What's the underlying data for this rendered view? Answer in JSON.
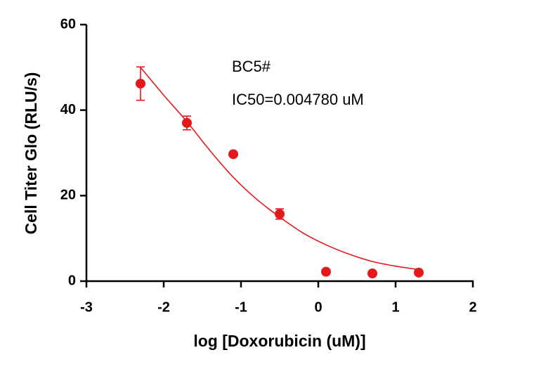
{
  "chart_data": {
    "type": "scatter",
    "xlabel": "log [Doxorubicin (uM)]",
    "ylabel": "Cell Titer Glo (RLU/s)",
    "annotations": [
      "BC5#",
      "IC50=0.004780 uM"
    ],
    "xlim": [
      -3,
      2
    ],
    "xticks": [
      -3,
      -2,
      -1,
      0,
      1,
      2
    ],
    "ylim": [
      0,
      60
    ],
    "yticks": [
      0,
      20,
      40,
      60
    ],
    "series": [
      {
        "color": "#e3191c",
        "x": [
          -2.3,
          -1.7,
          -1.1,
          -0.5,
          0.1,
          0.7,
          1.3
        ],
        "values": [
          46.2,
          37.0,
          29.7,
          15.7,
          2.2,
          1.8,
          2.0
        ],
        "errors": [
          3.9,
          1.6,
          0.4,
          1.2,
          0.3,
          0.2,
          0.3
        ]
      }
    ],
    "fit": {
      "color": "#e3191c",
      "x": [
        -2.3,
        -2.0,
        -1.7,
        -1.4,
        -1.1,
        -0.8,
        -0.5,
        -0.2,
        0.1,
        0.4,
        0.7,
        1.0,
        1.3
      ],
      "values": [
        50,
        43.5,
        37.3,
        30.5,
        24.3,
        19.2,
        15,
        11.3,
        8.5,
        6.3,
        4.6,
        3.5,
        2.7
      ]
    }
  }
}
